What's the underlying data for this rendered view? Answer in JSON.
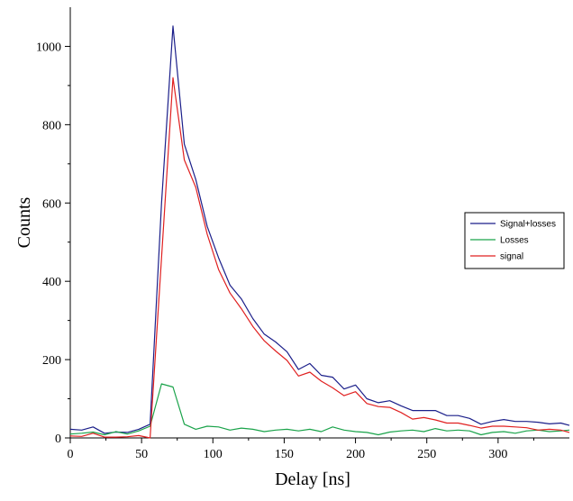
{
  "chart_data": {
    "type": "line",
    "xlabel": "Delay [ns]",
    "ylabel": "Counts",
    "xlim": [
      0,
      350
    ],
    "ylim": [
      0,
      1100
    ],
    "x_ticks": [
      0,
      50,
      100,
      150,
      200,
      250,
      300
    ],
    "y_ticks": [
      0,
      200,
      400,
      600,
      800,
      1000
    ],
    "legend_position": "right",
    "grid": false,
    "x": [
      0,
      8,
      16,
      24,
      32,
      40,
      48,
      56,
      64,
      72,
      80,
      88,
      96,
      104,
      112,
      120,
      128,
      136,
      144,
      152,
      160,
      168,
      176,
      184,
      192,
      200,
      208,
      216,
      224,
      232,
      240,
      248,
      256,
      264,
      272,
      280,
      288,
      296,
      304,
      312,
      320,
      328,
      336,
      344,
      350
    ],
    "series": [
      {
        "name": "Signal+losses",
        "color": "#1b1f8a",
        "values": [
          22,
          20,
          28,
          12,
          15,
          14,
          22,
          35,
          600,
          1052,
          750,
          660,
          540,
          460,
          390,
          355,
          305,
          265,
          245,
          220,
          175,
          190,
          160,
          155,
          125,
          135,
          100,
          90,
          95,
          82,
          70,
          70,
          70,
          57,
          57,
          50,
          35,
          42,
          47,
          42,
          42,
          40,
          36,
          38,
          32
        ]
      },
      {
        "name": "Losses",
        "color": "#1aa34a",
        "values": [
          10,
          12,
          15,
          8,
          16,
          10,
          18,
          30,
          138,
          130,
          35,
          22,
          30,
          28,
          20,
          25,
          22,
          16,
          20,
          22,
          18,
          22,
          16,
          28,
          20,
          16,
          14,
          8,
          15,
          18,
          20,
          16,
          24,
          18,
          20,
          18,
          8,
          14,
          16,
          12,
          18,
          20,
          16,
          18,
          20
        ]
      },
      {
        "name": "signal",
        "color": "#e02020",
        "values": [
          5,
          4,
          12,
          2,
          2,
          3,
          6,
          0,
          460,
          920,
          710,
          640,
          520,
          430,
          370,
          330,
          285,
          248,
          222,
          198,
          158,
          168,
          145,
          128,
          108,
          118,
          88,
          80,
          78,
          65,
          48,
          52,
          46,
          38,
          38,
          32,
          25,
          30,
          30,
          28,
          26,
          20,
          22,
          20,
          14
        ]
      }
    ]
  }
}
